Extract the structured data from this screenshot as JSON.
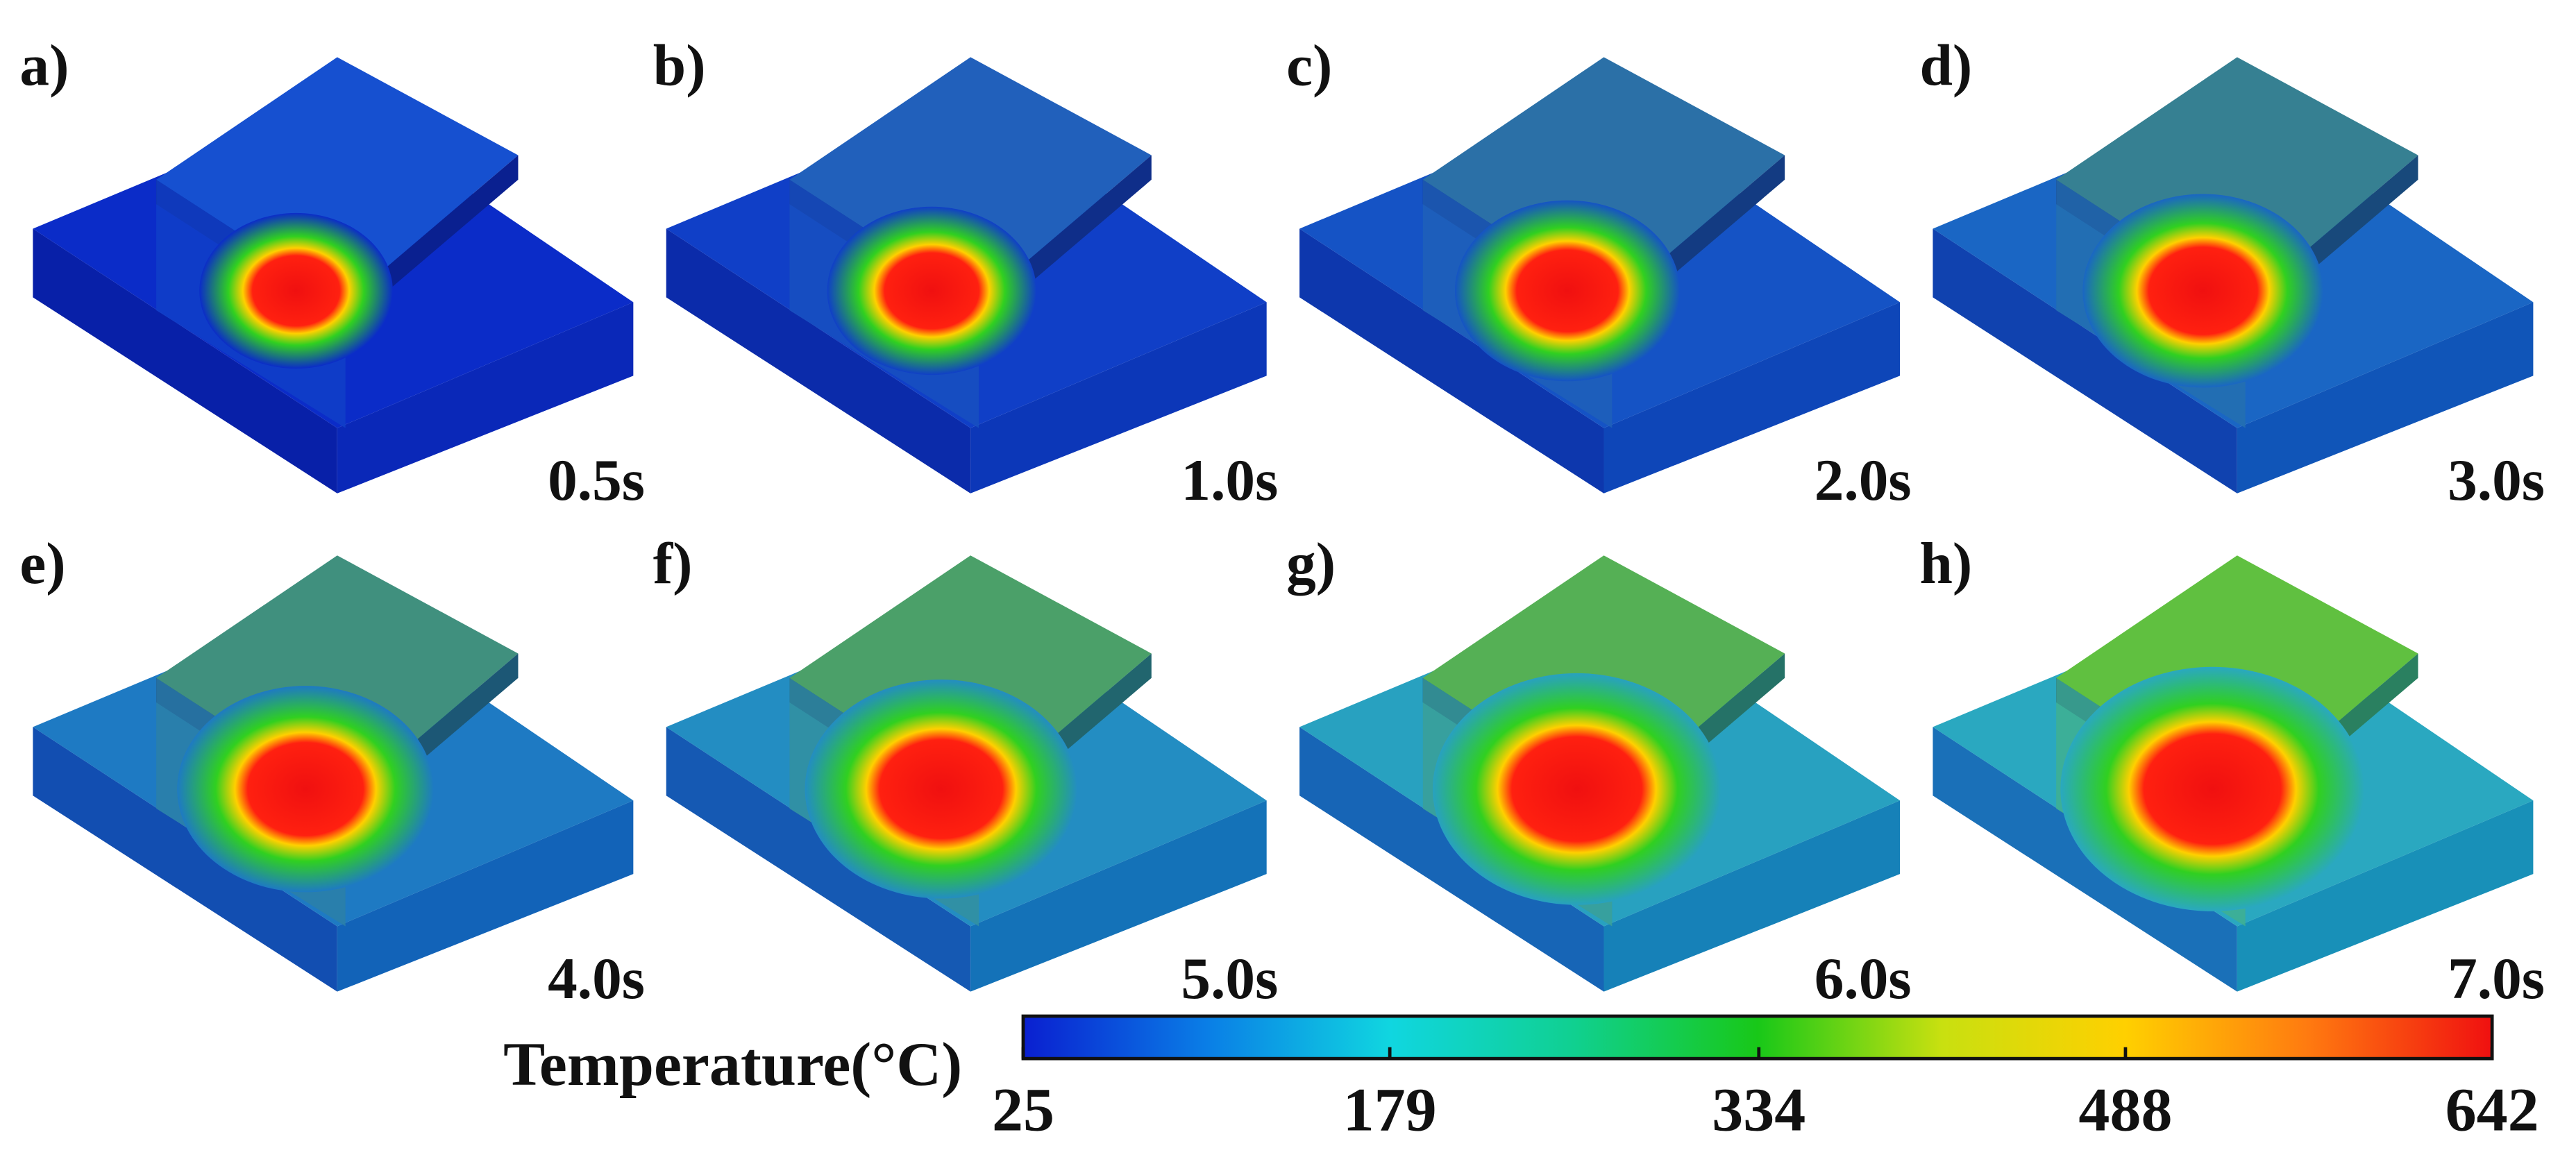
{
  "panels": [
    {
      "label": "a)",
      "time": "0.5s"
    },
    {
      "label": "b)",
      "time": "1.0s"
    },
    {
      "label": "c)",
      "time": "2.0s"
    },
    {
      "label": "d)",
      "time": "3.0s"
    },
    {
      "label": "e)",
      "time": "4.0s"
    },
    {
      "label": "f)",
      "time": "5.0s"
    },
    {
      "label": "g)",
      "time": "6.0s"
    },
    {
      "label": "h)",
      "time": "7.0s"
    }
  ],
  "colorbar": {
    "title": "Temperature(°C)",
    "lim": [
      25,
      642
    ],
    "ticks": [
      25,
      179,
      334,
      488,
      642
    ],
    "colors": [
      "#0a1fd0",
      "#0a7ee6",
      "#10d6e0",
      "#10d090",
      "#18c818",
      "#c8e010",
      "#ffd000",
      "#ff7a10",
      "#f01010"
    ]
  }
}
